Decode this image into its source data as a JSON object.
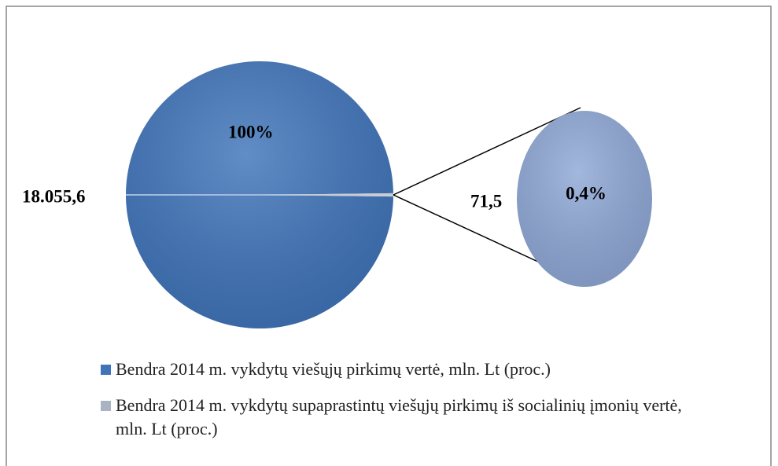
{
  "chart_data": {
    "type": "pie",
    "categories": [
      "Bendra 2014 m. vykdytų viešųjų pirkimų vertė, mln. Lt (proc.)",
      "Bendra 2014 m. vykdytų supaprastintų viešųjų pirkimų iš socialinių įmonių vertė, mln. Lt (proc.)"
    ],
    "values": [
      18055.6,
      71.5
    ],
    "value_labels": [
      "18.055,6",
      "71,5"
    ],
    "percents": [
      100,
      0.4
    ],
    "percent_labels": [
      "100%",
      "0,4%"
    ],
    "colors": [
      "#3f74ba",
      "#8fa8d6"
    ],
    "legend": "bottom"
  }
}
